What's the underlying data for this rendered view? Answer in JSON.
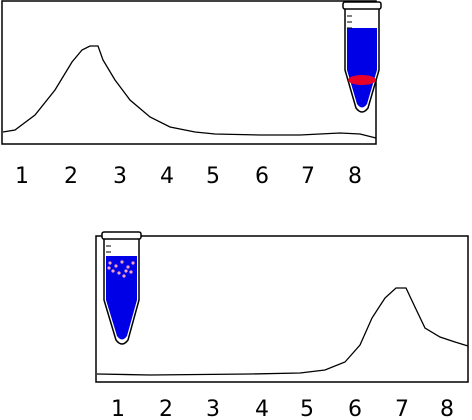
{
  "panels": [
    {
      "labels": [
        "1",
        "2",
        "3",
        "4",
        "5",
        "6",
        "7",
        "8"
      ]
    },
    {
      "labels": [
        "1",
        "2",
        "3",
        "4",
        "5",
        "6",
        "7",
        "8"
      ]
    }
  ]
}
